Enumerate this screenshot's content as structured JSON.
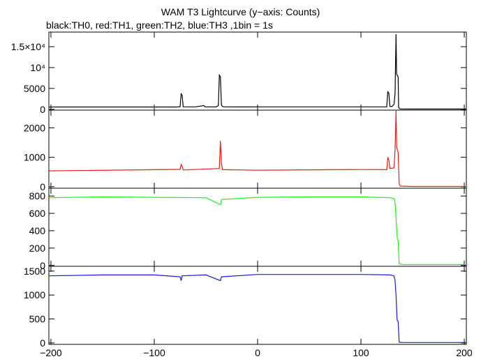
{
  "chart_data": {
    "type": "line",
    "title": "WAM T3 Lightcurve (y−axis: Counts)",
    "subtitle": "black:TH0, red:TH1, green:TH2, blue:TH3 ,1bin = 1s",
    "xlabel": "",
    "ylabel": "",
    "xlim": [
      -202,
      202
    ],
    "x_ticks": [
      -200,
      -100,
      0,
      100,
      200
    ],
    "x_tick_labels": [
      "−200",
      "−100",
      "0",
      "100",
      "200"
    ],
    "grid": false,
    "panels": [
      {
        "series": "TH0",
        "color": "#000000",
        "ylim": [
          -200,
          18500
        ],
        "y_ticks": [
          0,
          5000,
          10000,
          15000
        ],
        "y_tick_labels": [
          "0",
          "5000",
          "10⁴",
          "1.5×10⁴"
        ],
        "points": [
          [
            -202,
            550
          ],
          [
            -78,
            550
          ],
          [
            -75,
            620
          ],
          [
            -74,
            3700
          ],
          [
            -73,
            3400
          ],
          [
            -72,
            600
          ],
          [
            -60,
            580
          ],
          [
            -52,
            900
          ],
          [
            -51,
            580
          ],
          [
            -40,
            560
          ],
          [
            -38,
            900
          ],
          [
            -37,
            8200
          ],
          [
            -36,
            7800
          ],
          [
            -35,
            1000
          ],
          [
            -34,
            700
          ],
          [
            -33,
            580
          ],
          [
            -10,
            560
          ],
          [
            0,
            580
          ],
          [
            50,
            580
          ],
          [
            100,
            580
          ],
          [
            125,
            580
          ],
          [
            126,
            4200
          ],
          [
            127,
            3900
          ],
          [
            128,
            700
          ],
          [
            130,
            650
          ],
          [
            132,
            1200
          ],
          [
            133,
            3800
          ],
          [
            134,
            18000
          ],
          [
            134.5,
            8500
          ],
          [
            135,
            8200
          ],
          [
            136,
            7800
          ],
          [
            136.5,
            400
          ],
          [
            138,
            80
          ],
          [
            150,
            60
          ],
          [
            202,
            60
          ]
        ]
      },
      {
        "series": "TH1",
        "color": "#e0201c",
        "ylim": [
          -50,
          2600
        ],
        "y_ticks": [
          0,
          1000,
          2000
        ],
        "y_tick_labels": [
          "0",
          "1000",
          "2000"
        ],
        "points": [
          [
            -202,
            540
          ],
          [
            -75,
            590
          ],
          [
            -74,
            760
          ],
          [
            -73,
            700
          ],
          [
            -72,
            570
          ],
          [
            -37,
            620
          ],
          [
            -36,
            1560
          ],
          [
            -35,
            800
          ],
          [
            -34,
            580
          ],
          [
            0,
            560
          ],
          [
            50,
            575
          ],
          [
            100,
            585
          ],
          [
            125,
            580
          ],
          [
            126,
            1000
          ],
          [
            127,
            900
          ],
          [
            128,
            620
          ],
          [
            132,
            640
          ],
          [
            133,
            1250
          ],
          [
            134,
            2580
          ],
          [
            134.5,
            1350
          ],
          [
            135,
            1300
          ],
          [
            136,
            1150
          ],
          [
            137,
            100
          ],
          [
            138,
            20
          ],
          [
            150,
            10
          ],
          [
            202,
            10
          ]
        ]
      },
      {
        "series": "TH2",
        "color": "#22ee22",
        "ylim": [
          -10,
          890
        ],
        "y_ticks": [
          0,
          200,
          400,
          600,
          800
        ],
        "y_tick_labels": [
          "0",
          "200",
          "400",
          "600",
          "800"
        ],
        "points": [
          [
            -202,
            780
          ],
          [
            -150,
            790
          ],
          [
            -100,
            785
          ],
          [
            -50,
            780
          ],
          [
            -36,
            700
          ],
          [
            -35,
            760
          ],
          [
            0,
            785
          ],
          [
            50,
            790
          ],
          [
            100,
            790
          ],
          [
            128,
            780
          ],
          [
            132,
            770
          ],
          [
            133,
            720
          ],
          [
            134,
            540
          ],
          [
            135,
            330
          ],
          [
            136,
            280
          ],
          [
            137,
            20
          ],
          [
            140,
            10
          ],
          [
            202,
            10
          ]
        ]
      },
      {
        "series": "TH3",
        "color": "#1a1ad6",
        "ylim": [
          -30,
          1600
        ],
        "y_ticks": [
          0,
          500,
          1000,
          1500
        ],
        "y_tick_labels": [
          "0",
          "500",
          "1000",
          "1500"
        ],
        "points": [
          [
            -202,
            1400
          ],
          [
            -150,
            1420
          ],
          [
            -100,
            1420
          ],
          [
            -75,
            1380
          ],
          [
            -74,
            1300
          ],
          [
            -73,
            1400
          ],
          [
            -50,
            1420
          ],
          [
            -36,
            1300
          ],
          [
            -35,
            1380
          ],
          [
            0,
            1430
          ],
          [
            50,
            1430
          ],
          [
            100,
            1430
          ],
          [
            128,
            1420
          ],
          [
            132,
            1400
          ],
          [
            133,
            1300
          ],
          [
            134,
            1000
          ],
          [
            135,
            480
          ],
          [
            136,
            450
          ],
          [
            137,
            15
          ],
          [
            140,
            10
          ],
          [
            202,
            10
          ]
        ]
      }
    ]
  }
}
